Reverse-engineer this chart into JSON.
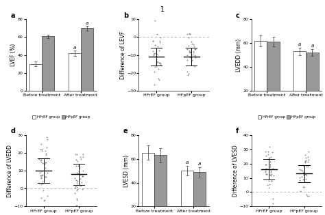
{
  "title_label": "1",
  "panel_a": {
    "label": "a",
    "ylabel": "LVEF (%)",
    "ylim": [
      0,
      80
    ],
    "yticks": [
      0,
      20,
      40,
      60,
      80
    ],
    "categories": [
      "Before treatment",
      "After treatment"
    ],
    "hfref_values": [
      30,
      42
    ],
    "hfpef_values": [
      61,
      70
    ],
    "hfref_errors": [
      2.5,
      3
    ],
    "hfpef_errors": [
      2,
      2.5
    ],
    "annot_indices": [
      1
    ],
    "bar_width": 0.32,
    "legend": true
  },
  "panel_b": {
    "label": "b",
    "ylabel": "Difference of LEVF",
    "ylim": [
      -30,
      10
    ],
    "yticks": [
      -30,
      -20,
      -10,
      0,
      10
    ],
    "hline_y": 0,
    "groups": [
      "HFrEF group",
      "HFpEF group"
    ],
    "medians": [
      -11,
      -11
    ],
    "iqrs": [
      5,
      5
    ],
    "n_points": 35
  },
  "panel_c": {
    "label": "c",
    "ylabel": "LVEDD (mm)",
    "ylim": [
      20,
      80
    ],
    "yticks": [
      20,
      40,
      60,
      80
    ],
    "categories": [
      "Before treatment",
      "After treatment"
    ],
    "hfref_values": [
      62,
      53
    ],
    "hfpef_values": [
      61,
      52
    ],
    "hfref_errors": [
      5,
      3
    ],
    "hfpef_errors": [
      4,
      3
    ],
    "annot_indices": [
      1
    ],
    "bar_width": 0.32,
    "legend": true
  },
  "panel_d": {
    "label": "d",
    "ylabel": "Difference of LVEDD",
    "ylim": [
      -10,
      30
    ],
    "yticks": [
      -10,
      0,
      10,
      20,
      30
    ],
    "hline_y": 0,
    "groups": [
      "HFrEF group",
      "HFpEF group"
    ],
    "medians": [
      10,
      8
    ],
    "iqrs": [
      7,
      6
    ],
    "n_points": 40
  },
  "panel_e": {
    "label": "e",
    "ylabel": "LVESD (mm)",
    "ylim": [
      20,
      80
    ],
    "yticks": [
      20,
      40,
      60,
      80
    ],
    "categories": [
      "Before treatment",
      "After treatment"
    ],
    "hfref_values": [
      65,
      50
    ],
    "hfpef_values": [
      63,
      49
    ],
    "hfref_errors": [
      6,
      4
    ],
    "hfpef_errors": [
      6,
      4
    ],
    "annot_indices": [
      1
    ],
    "bar_width": 0.32,
    "legend": true
  },
  "panel_f": {
    "label": "f",
    "ylabel": "Difference of LVESD",
    "ylim": [
      -10,
      40
    ],
    "yticks": [
      -10,
      0,
      10,
      20,
      30,
      40
    ],
    "hline_y": 0,
    "groups": [
      "HFrEF group",
      "HFpEF group"
    ],
    "medians": [
      16,
      13
    ],
    "iqrs": [
      7,
      6
    ],
    "n_points": 35
  },
  "color_hfref": "#ffffff",
  "color_hfpef": "#999999",
  "color_edge": "#333333",
  "dot_color": "#777777",
  "fs_label": 5.5,
  "fs_tick": 4.5,
  "fs_panel": 7,
  "fs_legend": 4.0,
  "fs_annot": 5.0
}
